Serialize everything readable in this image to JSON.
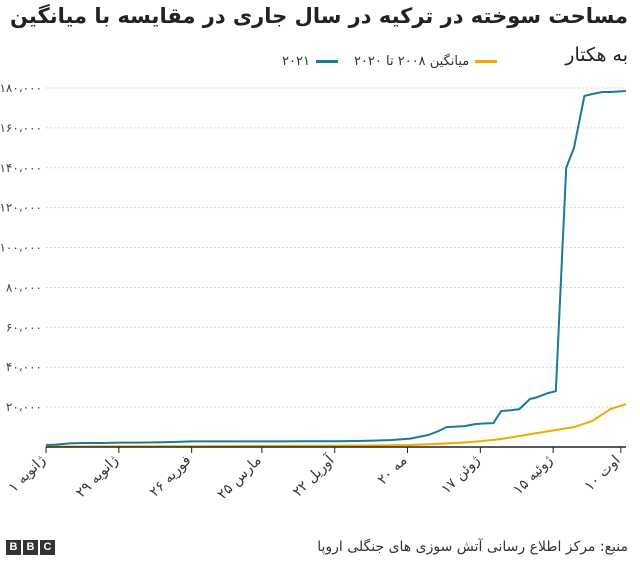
{
  "header": {
    "title": "مساحت سوخته در ترکیه در سال جاری در مقایسه با میانگین",
    "subtitle": "به هکتار"
  },
  "legend": {
    "items": [
      {
        "label": "میانگین ۲۰۰۸ تا ۲۰۲۰",
        "color": "#f2a900"
      },
      {
        "label": "۲۰۲۱",
        "color": "#1b7a97"
      }
    ]
  },
  "footer": {
    "source": "منبع: مرکز اطلاع رسانی آتش سوزی های جنگلی اروپا",
    "logo_letters": [
      "B",
      "B",
      "C"
    ]
  },
  "chart_data": {
    "type": "line",
    "title": "مساحت سوخته در ترکیه در سال جاری در مقایسه با میانگین",
    "ylabel": "به هکتار",
    "xlabel": "",
    "ylim": [
      0,
      180000
    ],
    "yticks": [
      20000,
      40000,
      60000,
      80000,
      100000,
      120000,
      140000,
      160000,
      180000
    ],
    "ytick_labels": [
      "۲۰،۰۰۰",
      "۴۰،۰۰۰",
      "۶۰،۰۰۰",
      "۸۰،۰۰۰",
      "۱۰۰،۰۰۰",
      "۱۲۰،۰۰۰",
      "۱۴۰،۰۰۰",
      "۱۶۰،۰۰۰",
      "۱۸۰،۰۰۰"
    ],
    "x_tick_labels": [
      "۱ ژانویه",
      "۲۹ ژانویه",
      "۲۶ فوریه",
      "۲۵ مارس",
      "۲۲ آوریل",
      "۲۰ مه",
      "۱۷ ژوئن",
      "۱۵ ژوئیه",
      "۱۰ اوت"
    ],
    "x_tick_days": [
      0,
      28,
      56,
      83,
      111,
      139,
      167,
      195,
      221
    ],
    "xlim": [
      0,
      223
    ],
    "grid": "horizontal",
    "legend_position": "top",
    "series": [
      {
        "name": "۲۰۲۱",
        "color": "#1b7a97",
        "x": [
          0,
          4,
          9,
          14,
          21,
          28,
          35,
          42,
          49,
          56,
          63,
          70,
          77,
          84,
          91,
          98,
          105,
          112,
          119,
          126,
          133,
          140,
          147,
          151,
          154,
          161,
          165,
          168,
          172,
          175,
          179,
          182,
          186,
          189,
          193,
          196,
          200,
          203,
          207,
          210,
          214,
          217,
          223
        ],
        "y": [
          1000,
          1200,
          1800,
          2000,
          2000,
          2200,
          2200,
          2300,
          2500,
          2800,
          2800,
          2800,
          2800,
          2800,
          2800,
          2900,
          2900,
          2900,
          3000,
          3200,
          3500,
          4200,
          6000,
          8000,
          10000,
          10500,
          11500,
          11800,
          12000,
          18000,
          18500,
          19000,
          24000,
          25000,
          27000,
          28000,
          140000,
          150000,
          176000,
          177000,
          178000,
          178000,
          178500
        ]
      },
      {
        "name": "میانگین ۲۰۰۸ تا ۲۰۲۰",
        "color": "#f2a900",
        "x": [
          0,
          28,
          56,
          83,
          111,
          130,
          140,
          150,
          160,
          168,
          175,
          182,
          189,
          196,
          203,
          210,
          217,
          223
        ],
        "y": [
          200,
          300,
          400,
          500,
          600,
          800,
          1000,
          1500,
          2200,
          3000,
          4000,
          5500,
          7000,
          8500,
          10000,
          13000,
          19000,
          21500
        ]
      }
    ]
  }
}
